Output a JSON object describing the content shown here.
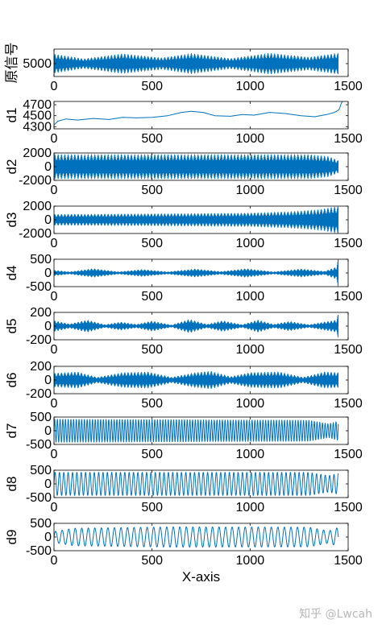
{
  "chart_data": [
    {
      "type": "line",
      "ylabel": "原信号",
      "yticks": [
        "5000"
      ],
      "ylim": [
        1000,
        9500
      ],
      "xticks": [
        "0",
        "500",
        "1000",
        "1500"
      ],
      "xlim": [
        0,
        1500
      ],
      "series": [
        {
          "color": "#0072BD",
          "kind": "osc",
          "center": 5000,
          "amp": [
            [
              0,
              3000
            ],
            [
              150,
              1500
            ],
            [
              350,
              3100
            ],
            [
              550,
              1800
            ],
            [
              700,
              3200
            ],
            [
              900,
              1600
            ],
            [
              1100,
              3300
            ],
            [
              1300,
              2000
            ],
            [
              1450,
              3300
            ]
          ],
          "freq": 3.0
        }
      ]
    },
    {
      "type": "line",
      "ylabel": "d1",
      "yticks": [
        "4700",
        "4500",
        "4300"
      ],
      "ylim": [
        4260,
        4760
      ],
      "xticks": [
        "0",
        "500",
        "1000",
        "1500"
      ],
      "xlim": [
        0,
        1500
      ],
      "series": [
        {
          "color": "#0072BD",
          "kind": "trend",
          "points": [
            [
              0,
              4330
            ],
            [
              20,
              4400
            ],
            [
              60,
              4440
            ],
            [
              120,
              4420
            ],
            [
              200,
              4450
            ],
            [
              280,
              4430
            ],
            [
              350,
              4470
            ],
            [
              420,
              4460
            ],
            [
              500,
              4470
            ],
            [
              580,
              4500
            ],
            [
              650,
              4560
            ],
            [
              700,
              4580
            ],
            [
              760,
              4560
            ],
            [
              820,
              4500
            ],
            [
              900,
              4490
            ],
            [
              960,
              4520
            ],
            [
              1020,
              4510
            ],
            [
              1100,
              4560
            ],
            [
              1180,
              4540
            ],
            [
              1260,
              4500
            ],
            [
              1330,
              4480
            ],
            [
              1390,
              4520
            ],
            [
              1430,
              4560
            ],
            [
              1450,
              4600
            ],
            [
              1455,
              4620
            ],
            [
              1462,
              4700
            ],
            [
              1470,
              4760
            ]
          ]
        }
      ]
    },
    {
      "type": "line",
      "ylabel": "d2",
      "yticks": [
        "2000",
        "0",
        "-2000"
      ],
      "ylim": [
        -2000,
        2000
      ],
      "xticks": [
        "0",
        "500",
        "1000",
        "1500"
      ],
      "xlim": [
        0,
        1500
      ],
      "series": [
        {
          "color": "#0072BD",
          "kind": "osc",
          "center": 0,
          "amp": [
            [
              0,
              1800
            ],
            [
              1300,
              1800
            ],
            [
              1400,
              1500
            ],
            [
              1450,
              900
            ]
          ],
          "freq": 6.5
        }
      ]
    },
    {
      "type": "line",
      "ylabel": "d3",
      "yticks": [
        "2000",
        "0",
        "-2000"
      ],
      "ylim": [
        -2000,
        2000
      ],
      "xticks": [
        "0",
        "500",
        "1000",
        "1500"
      ],
      "xlim": [
        0,
        1500
      ],
      "series": [
        {
          "color": "#0072BD",
          "kind": "osc",
          "center": 0,
          "amp": [
            [
              0,
              800
            ],
            [
              600,
              900
            ],
            [
              1000,
              1000
            ],
            [
              1200,
              1200
            ],
            [
              1350,
              1500
            ],
            [
              1450,
              2000
            ]
          ],
          "freq": 6.0
        }
      ]
    },
    {
      "type": "line",
      "ylabel": "d4",
      "yticks": [
        "500",
        "0",
        "-500"
      ],
      "ylim": [
        -500,
        500
      ],
      "xticks": [
        "0",
        "500",
        "1000",
        "1500"
      ],
      "xlim": [
        0,
        1500
      ],
      "series": [
        {
          "color": "#0072BD",
          "kind": "osc",
          "center": 0,
          "amp": [
            [
              0,
              100
            ],
            [
              80,
              40
            ],
            [
              200,
              160
            ],
            [
              330,
              40
            ],
            [
              450,
              130
            ],
            [
              580,
              40
            ],
            [
              720,
              150
            ],
            [
              850,
              50
            ],
            [
              980,
              160
            ],
            [
              1120,
              40
            ],
            [
              1260,
              150
            ],
            [
              1380,
              60
            ],
            [
              1440,
              220
            ],
            [
              1450,
              550
            ]
          ],
          "freq": 5.5
        }
      ]
    },
    {
      "type": "line",
      "ylabel": "d5",
      "yticks": [
        "200",
        "0",
        "-200"
      ],
      "ylim": [
        -200,
        200
      ],
      "xticks": [
        "0",
        "500",
        "1000",
        "1500"
      ],
      "xlim": [
        0,
        1500
      ],
      "series": [
        {
          "color": "#0072BD",
          "kind": "osc",
          "center": 0,
          "amp": [
            [
              0,
              80
            ],
            [
              80,
              30
            ],
            [
              170,
              90
            ],
            [
              260,
              20
            ],
            [
              340,
              60
            ],
            [
              420,
              25
            ],
            [
              500,
              75
            ],
            [
              600,
              15
            ],
            [
              690,
              100
            ],
            [
              780,
              25
            ],
            [
              860,
              80
            ],
            [
              960,
              20
            ],
            [
              1040,
              90
            ],
            [
              1120,
              25
            ],
            [
              1200,
              70
            ],
            [
              1300,
              20
            ],
            [
              1380,
              60
            ],
            [
              1440,
              90
            ],
            [
              1450,
              180
            ]
          ],
          "freq": 5.0
        }
      ]
    },
    {
      "type": "line",
      "ylabel": "d6",
      "yticks": [
        "200",
        "0",
        "-200"
      ],
      "ylim": [
        -200,
        200
      ],
      "xticks": [
        "0",
        "500",
        "1000",
        "1500"
      ],
      "xlim": [
        0,
        1500
      ],
      "series": [
        {
          "color": "#0072BD",
          "kind": "osc",
          "center": 0,
          "amp": [
            [
              0,
              100
            ],
            [
              120,
              120
            ],
            [
              220,
              40
            ],
            [
              350,
              110
            ],
            [
              480,
              120
            ],
            [
              600,
              40
            ],
            [
              720,
              110
            ],
            [
              800,
              130
            ],
            [
              900,
              50
            ],
            [
              1000,
              110
            ],
            [
              1150,
              120
            ],
            [
              1270,
              40
            ],
            [
              1380,
              120
            ],
            [
              1450,
              110
            ]
          ],
          "freq": 4.2
        }
      ]
    },
    {
      "type": "line",
      "ylabel": "d7",
      "yticks": [
        "500",
        "0",
        "-500"
      ],
      "ylim": [
        -500,
        500
      ],
      "xticks": [
        "0",
        "500",
        "1000",
        "1500"
      ],
      "xlim": [
        0,
        1500
      ],
      "series": [
        {
          "color": "#0072BD",
          "kind": "osc",
          "center": 0,
          "amp": [
            [
              0,
              420
            ],
            [
              1300,
              380
            ],
            [
              1400,
              250
            ],
            [
              1450,
              350
            ]
          ],
          "freq": 0.145
        }
      ]
    },
    {
      "type": "line",
      "ylabel": "d8",
      "yticks": [
        "500",
        "0",
        "-500"
      ],
      "ylim": [
        -500,
        500
      ],
      "xticks": [
        "0",
        "500",
        "1000",
        "1500"
      ],
      "xlim": [
        0,
        1500
      ],
      "series": [
        {
          "color": "#0072BD",
          "kind": "osc",
          "center": 0,
          "amp": [
            [
              0,
              420
            ],
            [
              1300,
              420
            ],
            [
              1400,
              300
            ],
            [
              1450,
              380
            ]
          ],
          "freq": 0.09
        }
      ]
    },
    {
      "type": "line",
      "ylabel": "d9",
      "yticks": [
        "500",
        "0",
        "-500"
      ],
      "ylim": [
        -500,
        500
      ],
      "xticks": [
        "0",
        "500",
        "1000",
        "1500"
      ],
      "xlim": [
        0,
        1500
      ],
      "xlabel": "X-axis",
      "series": [
        {
          "color": "#0072BD",
          "kind": "osc",
          "center": 0,
          "amp": [
            [
              0,
              200
            ],
            [
              100,
              320
            ],
            [
              600,
              370
            ],
            [
              1300,
              360
            ],
            [
              1400,
              220
            ],
            [
              1450,
              350
            ]
          ],
          "freq": 0.06
        }
      ]
    }
  ],
  "watermark": "知乎 @Lwcah"
}
